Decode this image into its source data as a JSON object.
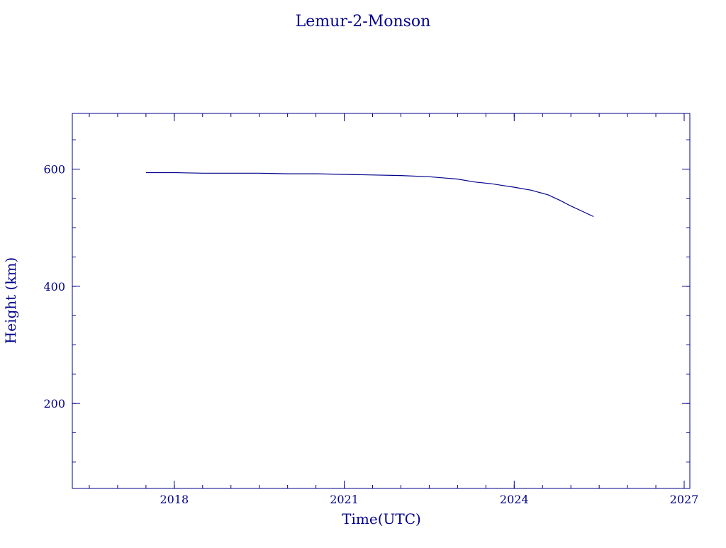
{
  "chart_data": {
    "type": "line",
    "title": "Lemur-2-Monson",
    "xlabel": "Time(UTC)",
    "ylabel": "Height (km)",
    "xlim": [
      2016.2,
      2027.1
    ],
    "ylim": [
      55,
      695
    ],
    "x_ticks": [
      2018,
      2021,
      2024,
      2027
    ],
    "x_tick_labels": [
      "2018",
      "2021",
      "2024",
      "2027"
    ],
    "x_minor_step": 0.5,
    "y_ticks": [
      200,
      400,
      600
    ],
    "y_tick_labels": [
      "200",
      "400",
      "600"
    ],
    "y_minor_step": 50,
    "grid": false,
    "color": "#00008b",
    "series": [
      {
        "x": [
          2017.5,
          2018.0,
          2018.5,
          2019.0,
          2019.5,
          2020.0,
          2020.5,
          2021.0,
          2021.5,
          2022.0,
          2022.5,
          2023.0,
          2023.3,
          2023.6,
          2023.8,
          2024.0,
          2024.3,
          2024.6,
          2024.8,
          2025.0,
          2025.2,
          2025.4
        ],
        "y": [
          594,
          594,
          593,
          593,
          593,
          592,
          592,
          591,
          590,
          589,
          587,
          583,
          578,
          575,
          572,
          569,
          564,
          556,
          547,
          537,
          528,
          519
        ]
      }
    ]
  }
}
